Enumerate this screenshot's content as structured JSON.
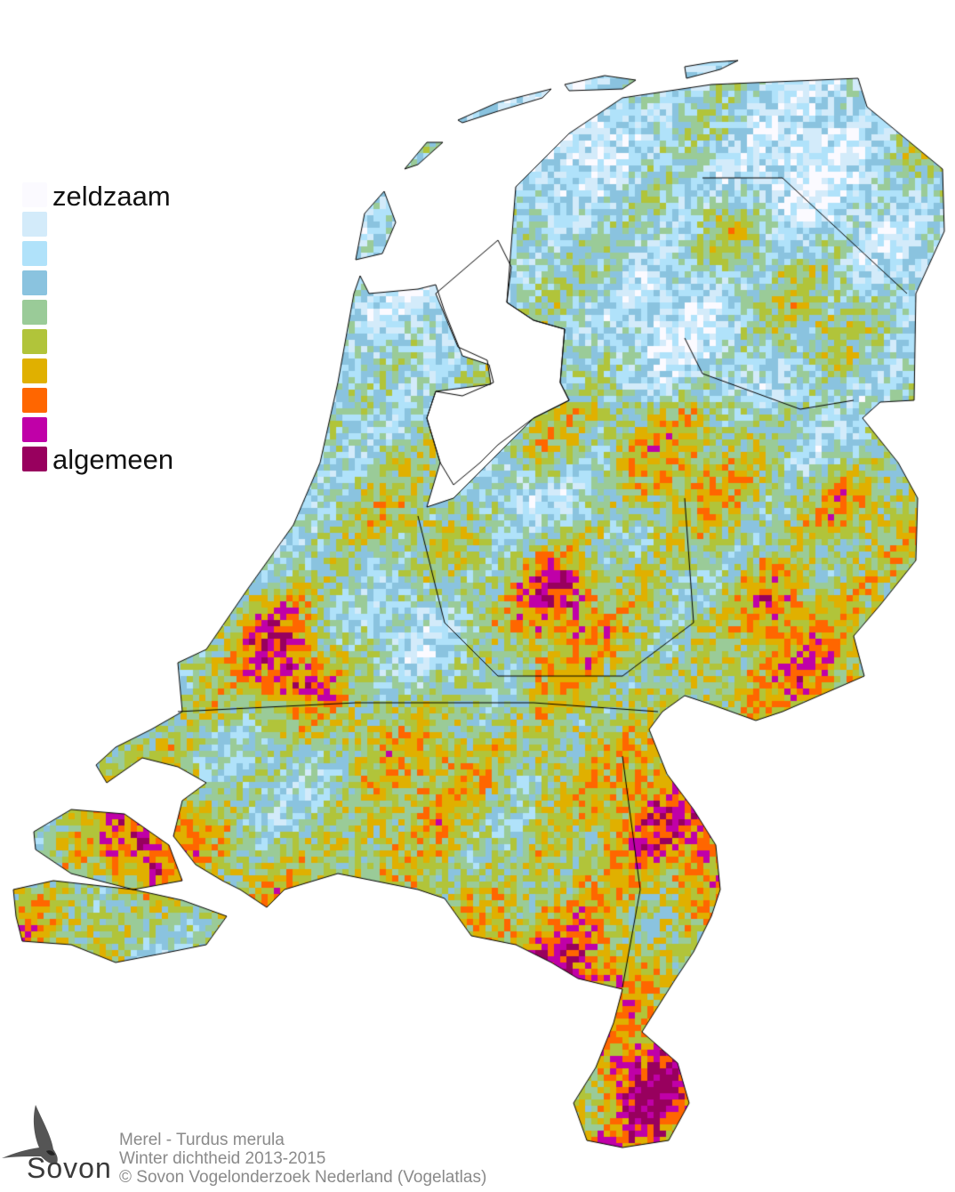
{
  "map": {
    "legend": {
      "high_label": "zeldzaam",
      "low_label": "algemeen",
      "colors": [
        "#fbfaff",
        "#d3ebfa",
        "#b0e2fa",
        "#8ac3df",
        "#9acb98",
        "#b1c43a",
        "#e0b000",
        "#ff6600",
        "#c000a8",
        "#98005e"
      ]
    },
    "water_color": "#ffffff",
    "border_color": "#000000"
  },
  "credits": {
    "species": "Merel - Turdus merula",
    "subtitle": "Winter dichtheid 2013-2015",
    "copyright": "© Sovon Vogelonderzoek Nederland (Vogelatlas)"
  },
  "logo": {
    "text": "Sovon"
  }
}
